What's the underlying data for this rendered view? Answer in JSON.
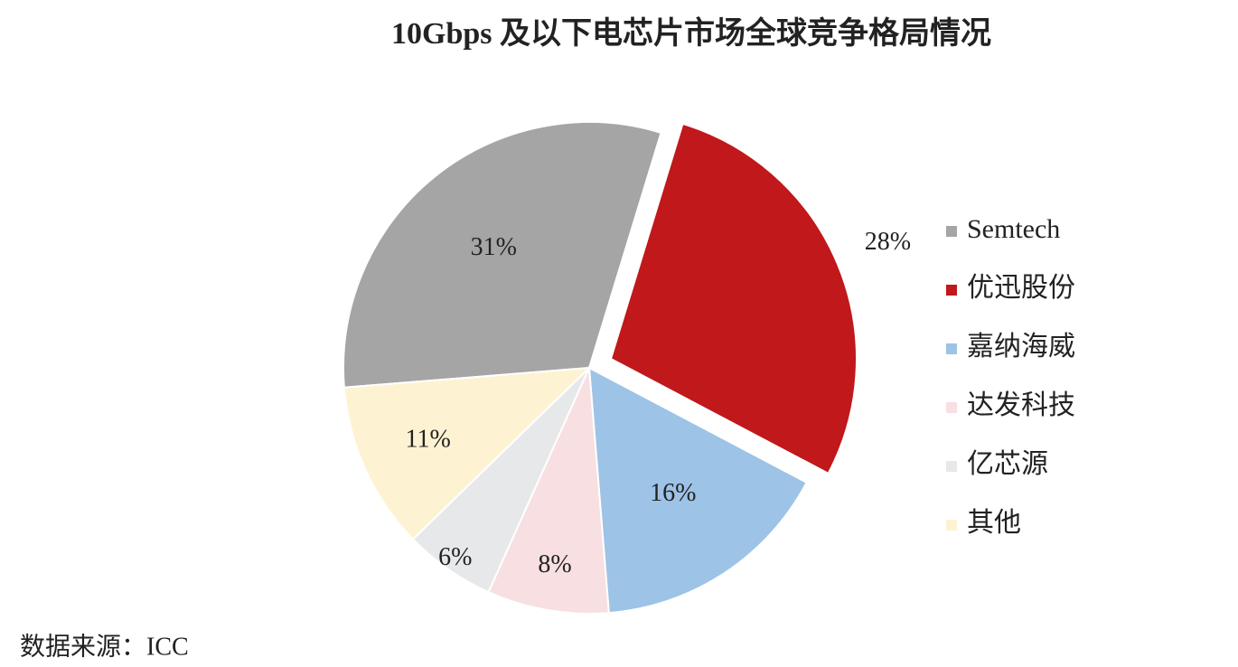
{
  "chart_data": {
    "type": "pie",
    "title": "10Gbps 及以下电芯片市场全球竞争格局情况",
    "categories": [
      "Semtech",
      "优迅股份",
      "嘉纳海威",
      "达发科技",
      "亿芯源",
      "其他"
    ],
    "values": [
      31,
      28,
      16,
      8,
      6,
      11
    ],
    "value_labels": [
      "31%",
      "28%",
      "16%",
      "8%",
      "6%",
      "11%"
    ],
    "colors": [
      "#a5a5a6",
      "#c0181b",
      "#9dc3e6",
      "#f8dfe1",
      "#e7e8ea",
      "#fdf3d2"
    ],
    "legend": "right",
    "source": "数据来源：ICC"
  }
}
